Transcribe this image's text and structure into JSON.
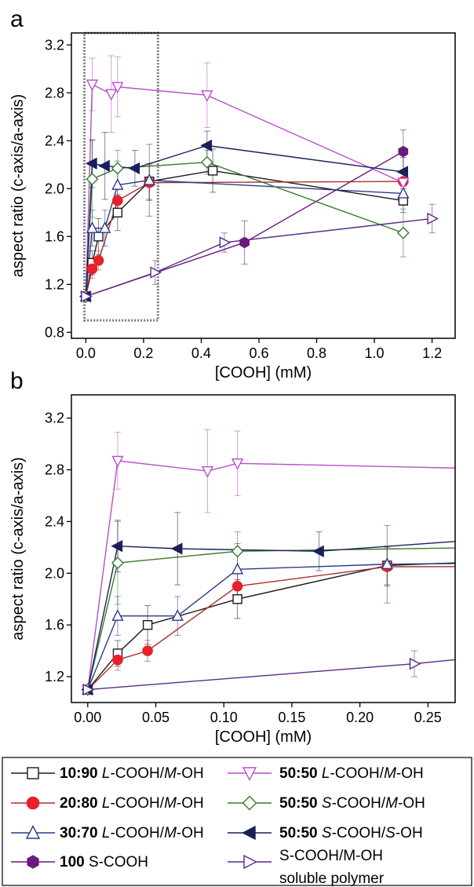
{
  "chart_data": [
    {
      "type": "line",
      "panel_label": "a",
      "xlabel": "[COOH] (mM)",
      "ylabel": "aspect ratio (c-axis/a-axis)",
      "xlim": [
        -0.05,
        1.28
      ],
      "ylim": [
        0.75,
        3.3
      ],
      "xticks": [
        0.0,
        0.2,
        0.4,
        0.6,
        0.8,
        1.0,
        1.2
      ],
      "xtick_labels": [
        "0.0",
        "0.2",
        "0.4",
        "0.6",
        "0.8",
        "1.0",
        "1.2"
      ],
      "yticks": [
        0.8,
        1.2,
        1.6,
        2.0,
        2.4,
        2.8,
        3.2
      ],
      "ytick_labels": [
        "0.8",
        "1.2",
        "1.6",
        "2.0",
        "2.4",
        "2.8",
        "3.2"
      ],
      "zoom_box": {
        "x": [
          -0.005,
          0.25
        ],
        "y": [
          0.9,
          3.3
        ]
      },
      "series": [
        {
          "key": "s1",
          "x": [
            0,
            0.022,
            0.044,
            0.11,
            0.22,
            0.44,
            1.1
          ],
          "y": [
            1.1,
            1.38,
            1.6,
            1.8,
            2.06,
            2.15,
            1.9
          ],
          "err": [
            0,
            0.1,
            0.15,
            0.15,
            0.15,
            0.18,
            0.1
          ]
        },
        {
          "key": "s2",
          "x": [
            0,
            0.022,
            0.044,
            0.11,
            0.22,
            1.1
          ],
          "y": [
            1.1,
            1.33,
            1.4,
            1.9,
            2.05,
            2.06
          ],
          "err": [
            0,
            0.08,
            0.08,
            0.1,
            0.15,
            0
          ]
        },
        {
          "key": "s3",
          "x": [
            0,
            0.022,
            0.066,
            0.11,
            0.22,
            1.1
          ],
          "y": [
            1.1,
            1.67,
            1.67,
            2.03,
            2.07,
            1.96
          ],
          "err": [
            0,
            0.15,
            0.15,
            0.2,
            0.3,
            0.1
          ]
        },
        {
          "key": "s4",
          "x": [
            0,
            0.55,
            1.1
          ],
          "y": [
            1.1,
            1.55,
            2.31
          ],
          "err": [
            0,
            0.18,
            0.18
          ]
        },
        {
          "key": "s5",
          "x": [
            0,
            0.022,
            0.088,
            0.11,
            0.42,
            1.1
          ],
          "y": [
            1.1,
            2.87,
            2.79,
            2.85,
            2.78,
            2.05
          ],
          "err": [
            0,
            0.22,
            0.32,
            0.25,
            0.27,
            0
          ]
        },
        {
          "key": "s6",
          "x": [
            0,
            0.022,
            0.11,
            0.42,
            1.1
          ],
          "y": [
            1.1,
            2.08,
            2.17,
            2.22,
            1.63
          ],
          "err": [
            0,
            0.32,
            0.15,
            0.1,
            0.2
          ]
        },
        {
          "key": "s7",
          "x": [
            0,
            0.022,
            0.066,
            0.17,
            0.42,
            1.1
          ],
          "y": [
            1.1,
            2.21,
            2.19,
            2.17,
            2.36,
            2.14
          ],
          "err": [
            0,
            0.2,
            0.28,
            0.15,
            0.12,
            0.12
          ]
        },
        {
          "key": "s8",
          "x": [
            0,
            0.24,
            0.48,
            1.2
          ],
          "y": [
            1.1,
            1.3,
            1.55,
            1.75
          ],
          "err": [
            0,
            0.1,
            0.08,
            0.12
          ]
        }
      ]
    },
    {
      "type": "line",
      "panel_label": "b",
      "xlabel": "[COOH] (mM)",
      "ylabel": "aspect ratio (c-axis/a-axis)",
      "xlim": [
        -0.012,
        0.27
      ],
      "ylim": [
        1.0,
        3.38
      ],
      "xticks": [
        0.0,
        0.05,
        0.1,
        0.15,
        0.2,
        0.25
      ],
      "xtick_labels": [
        "0.00",
        "0.05",
        "0.10",
        "0.15",
        "0.20",
        "0.25"
      ],
      "yticks": [
        1.2,
        1.6,
        2.0,
        2.4,
        2.8,
        3.2
      ],
      "ytick_labels": [
        "1.2",
        "1.6",
        "2.0",
        "2.4",
        "2.8",
        "3.2"
      ],
      "series": [
        {
          "key": "s1",
          "x": [
            0,
            0.022,
            0.044,
            0.11,
            0.22,
            0.44
          ],
          "y": [
            1.1,
            1.38,
            1.6,
            1.8,
            2.06,
            2.15
          ],
          "err": [
            0,
            0.1,
            0.15,
            0.15,
            0.15,
            0
          ]
        },
        {
          "key": "s2",
          "x": [
            0,
            0.022,
            0.044,
            0.11,
            0.22,
            0.5
          ],
          "y": [
            1.1,
            1.33,
            1.4,
            1.9,
            2.05,
            2.06
          ],
          "err": [
            0,
            0.08,
            0.08,
            0.1,
            0.15,
            0
          ]
        },
        {
          "key": "s3",
          "x": [
            0,
            0.022,
            0.066,
            0.11,
            0.22,
            0.5
          ],
          "y": [
            1.1,
            1.67,
            1.67,
            2.03,
            2.07,
            2.1
          ],
          "err": [
            0,
            0.15,
            0.15,
            0.2,
            0.3,
            0
          ]
        },
        {
          "key": "s5",
          "x": [
            0,
            0.022,
            0.088,
            0.11,
            0.42
          ],
          "y": [
            1.1,
            2.87,
            2.79,
            2.85,
            2.78
          ],
          "err": [
            0,
            0.22,
            0.32,
            0.25,
            0
          ]
        },
        {
          "key": "s6",
          "x": [
            0,
            0.022,
            0.11,
            0.42
          ],
          "y": [
            1.1,
            2.08,
            2.17,
            2.22
          ],
          "err": [
            0,
            0.32,
            0.15,
            0
          ]
        },
        {
          "key": "s7",
          "x": [
            0,
            0.022,
            0.066,
            0.17,
            0.42
          ],
          "y": [
            1.1,
            2.21,
            2.19,
            2.17,
            2.36
          ],
          "err": [
            0,
            0.2,
            0.28,
            0.15,
            0
          ]
        },
        {
          "key": "s8",
          "x": [
            0,
            0.24,
            0.48
          ],
          "y": [
            1.1,
            1.3,
            1.55
          ],
          "err": [
            0,
            0.1,
            0
          ]
        }
      ]
    }
  ],
  "legend": {
    "placement": "bottom",
    "entries": [
      {
        "key": "s1",
        "ratio": "10:90",
        "label": "L-COOH/M-OH",
        "color": "#1a1a1a",
        "marker": "square",
        "filled": false
      },
      {
        "key": "s5",
        "ratio": "50:50",
        "label": "L-COOH/M-OH",
        "color": "#b94fc9",
        "marker": "triangle-down",
        "filled": false
      },
      {
        "key": "s2",
        "ratio": "20:80",
        "label": "L-COOH/M-OH",
        "color": "#a8322a",
        "marker_color": "#e8202a",
        "marker": "circle",
        "filled": true
      },
      {
        "key": "s6",
        "ratio": "50:50",
        "label": "S-COOH/M-OH",
        "color": "#3a7a2a",
        "marker": "diamond",
        "filled": false
      },
      {
        "key": "s3",
        "ratio": "30:70",
        "label": "L-COOH/M-OH",
        "color": "#2a3a8a",
        "marker": "triangle-up",
        "filled": false
      },
      {
        "key": "s7",
        "ratio": "50:50",
        "label": "S-COOH/S-OH",
        "color": "#1a1f5a",
        "marker": "triangle-left",
        "filled": true
      },
      {
        "key": "s4",
        "ratio": "100",
        "label": "S-COOH",
        "color": "#6a1a7a",
        "marker": "hexagon",
        "filled": true
      },
      {
        "key": "s8",
        "ratio": "",
        "label": "S-COOH/M-OH",
        "label2": "soluble polymer",
        "color": "#5a2a8a",
        "marker": "triangle-right",
        "filled": false
      }
    ]
  }
}
